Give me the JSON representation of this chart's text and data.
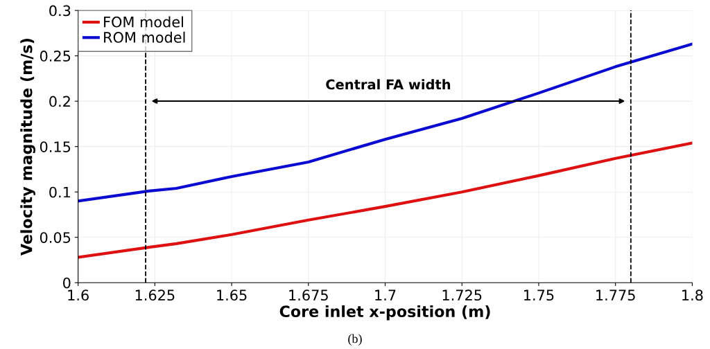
{
  "chart_data": {
    "type": "line",
    "xlabel": "Core inlet x-position (m)",
    "ylabel": "Velocity magnitude (m/s)",
    "x": [
      1.6,
      1.623,
      1.632,
      1.65,
      1.675,
      1.7,
      1.725,
      1.75,
      1.775,
      1.8
    ],
    "series": [
      {
        "name": "FOM model",
        "color": "#dd1111",
        "values": [
          0.028,
          0.039,
          0.043,
          0.053,
          0.069,
          0.084,
          0.1,
          0.118,
          0.137,
          0.154
        ]
      },
      {
        "name": "ROM model",
        "color": "#0a0ad0",
        "values": [
          0.09,
          0.101,
          0.104,
          0.117,
          0.133,
          0.158,
          0.181,
          0.209,
          0.238,
          0.263
        ]
      }
    ],
    "xlim": [
      1.6,
      1.8
    ],
    "xticks": [
      1.6,
      1.625,
      1.65,
      1.675,
      1.7,
      1.725,
      1.75,
      1.775,
      1.8
    ],
    "ylim": [
      0,
      0.3
    ],
    "yticks": [
      0,
      0.05,
      0.1,
      0.15,
      0.2,
      0.25,
      0.3
    ],
    "ref_lines": [
      {
        "axis": "x",
        "value": 1.622,
        "line_style": "dashed",
        "color": "#000000"
      },
      {
        "axis": "x",
        "value": 1.78,
        "line_style": "dashed",
        "color": "#000000"
      }
    ],
    "annotations": [
      "Central FA width",
      "(b)"
    ],
    "grid": true,
    "legend": "top left",
    "line_style": "solid",
    "marker": "none"
  }
}
